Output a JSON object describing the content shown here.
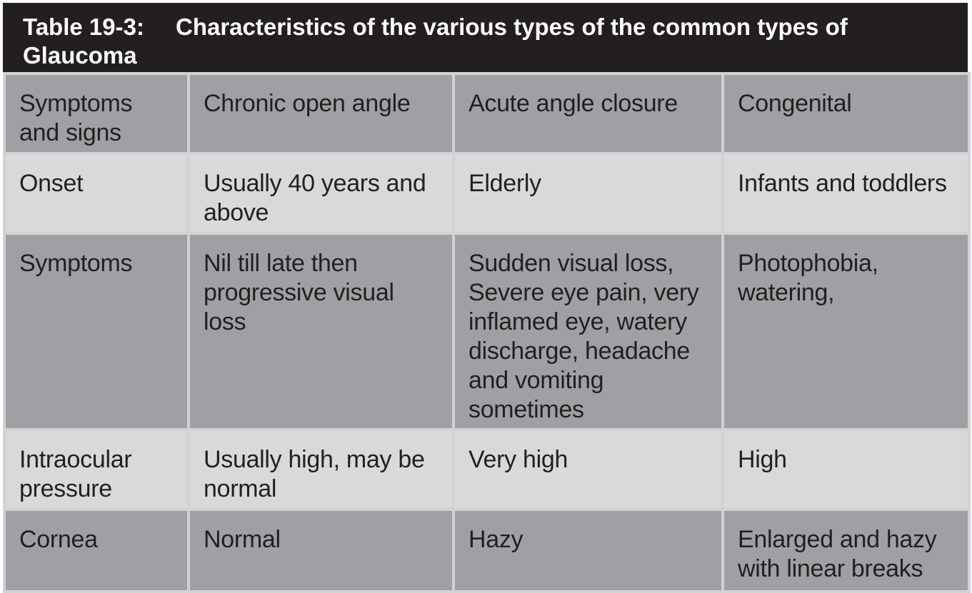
{
  "table": {
    "title_number": "Table 19-3:",
    "title_text": "Characteristics of the various types of the common types of Glaucoma",
    "colors": {
      "title_background": "#231f20",
      "dark_row": "#a0a0a4",
      "light_row": "#d9d9db",
      "border": "#d2d2d4"
    },
    "header": [
      "Symptoms and signs",
      "Chronic open angle",
      "Acute angle closure",
      "Congenital"
    ],
    "rows": [
      {
        "label": "Onset",
        "cells": [
          "Usually 40 years and above",
          "Elderly",
          "Infants and toddlers"
        ]
      },
      {
        "label": "Symptoms",
        "cells": [
          "Nil till late then progressive visual loss",
          "Sudden visual loss, Severe eye pain, very inflamed eye, watery discharge, headache and vomiting sometimes",
          "Photophobia, watering,"
        ]
      },
      {
        "label": "Intraocular pressure",
        "cells": [
          "Usually high, may be normal",
          "Very high",
          "High"
        ]
      },
      {
        "label": "Cornea",
        "cells": [
          "Normal",
          "Hazy",
          "Enlarged and hazy with linear breaks"
        ]
      }
    ]
  }
}
